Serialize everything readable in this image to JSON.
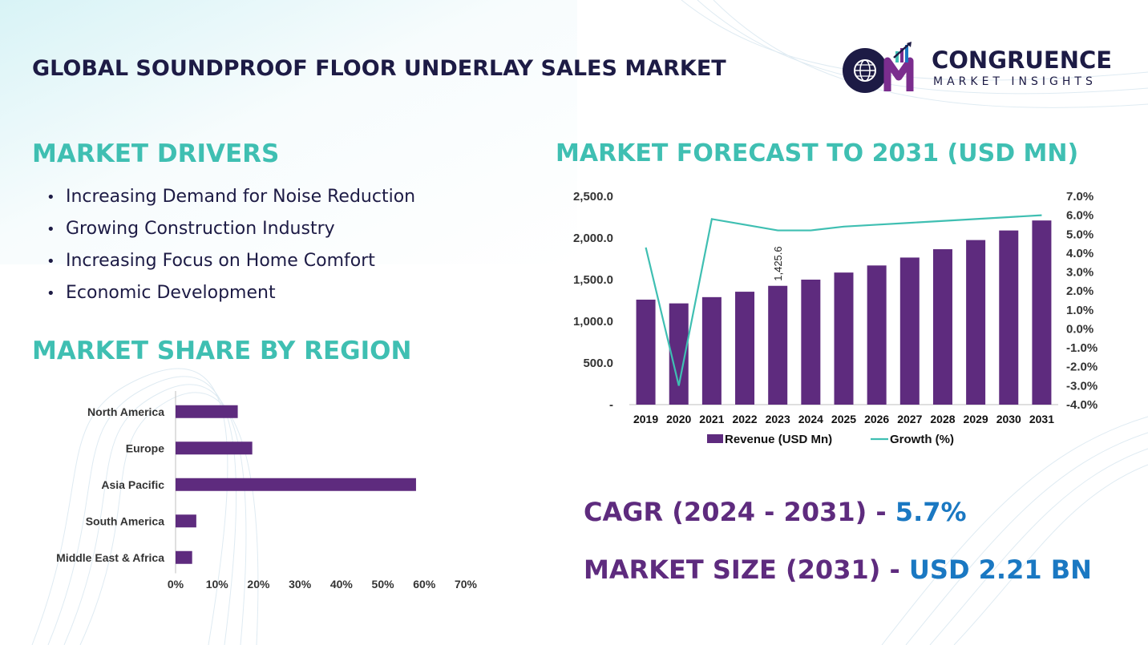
{
  "title": "GLOBAL SOUNDPROOF FLOOR UNDERLAY SALES MARKET",
  "logo": {
    "name": "CONGRUENCE",
    "subtitle": "MARKET INSIGHTS",
    "icon": "globe-chart-logo-icon"
  },
  "drivers": {
    "heading": "MARKET DRIVERS",
    "items": [
      "Increasing Demand for Noise Reduction",
      "Growing Construction Industry",
      "Increasing Focus on Home Comfort",
      "Economic Development"
    ]
  },
  "region": {
    "heading": "MARKET SHARE BY REGION"
  },
  "forecast": {
    "heading": "MARKET FORECAST TO 2031 (USD MN)"
  },
  "kpis": {
    "cagr_label": "CAGR (2024 - 2031)",
    "cagr_sep": " - ",
    "cagr_value": "5.7%",
    "size_label": "MARKET SIZE (2031)",
    "size_sep": " - ",
    "size_value": "USD 2.21 BN"
  },
  "colors": {
    "bar": "#5e2b7e",
    "line": "#3fbfb2",
    "heading": "#3fbfb2",
    "title": "#1d1b45",
    "kpi_value": "#1a78c2"
  },
  "chart_data": [
    {
      "type": "bar",
      "orientation": "horizontal",
      "categories": [
        "North America",
        "Europe",
        "Asia Pacific",
        "South America",
        "Middle East & Africa"
      ],
      "values": [
        15,
        18.5,
        58,
        5,
        4
      ],
      "xlim": [
        0,
        70
      ],
      "xticks": [
        "0%",
        "10%",
        "20%",
        "30%",
        "40%",
        "50%",
        "60%",
        "70%"
      ],
      "grid": false,
      "legend": "none"
    },
    {
      "type": "bar",
      "categories": [
        "2019",
        "2020",
        "2021",
        "2022",
        "2023",
        "2024",
        "2025",
        "2026",
        "2027",
        "2028",
        "2029",
        "2030",
        "2031"
      ],
      "series": [
        {
          "name": "Revenue (USD Mn)",
          "type": "bar",
          "axis": "left",
          "values": [
            1260,
            1215,
            1290,
            1355,
            1425.6,
            1500,
            1585,
            1670,
            1765,
            1865,
            1975,
            2090,
            2210
          ]
        },
        {
          "name": "Growth (%)",
          "type": "line",
          "axis": "right",
          "values": [
            4.3,
            -3.0,
            5.8,
            5.5,
            5.2,
            5.2,
            5.4,
            5.5,
            5.6,
            5.7,
            5.8,
            5.9,
            6.0
          ]
        }
      ],
      "data_labels": [
        {
          "index": 4,
          "text": "1,425.6"
        }
      ],
      "ylim_left": [
        0,
        2500
      ],
      "yticks_left": [
        "-",
        "500.0",
        "1,000.0",
        "1,500.0",
        "2,000.0",
        "2,500.0"
      ],
      "ylim_right": [
        -4,
        7
      ],
      "yticks_right": [
        "-4.0%",
        "-3.0%",
        "-2.0%",
        "-1.0%",
        "0.0%",
        "1.0%",
        "2.0%",
        "3.0%",
        "4.0%",
        "5.0%",
        "6.0%",
        "7.0%"
      ],
      "grid": false,
      "legend": "bottom"
    }
  ]
}
